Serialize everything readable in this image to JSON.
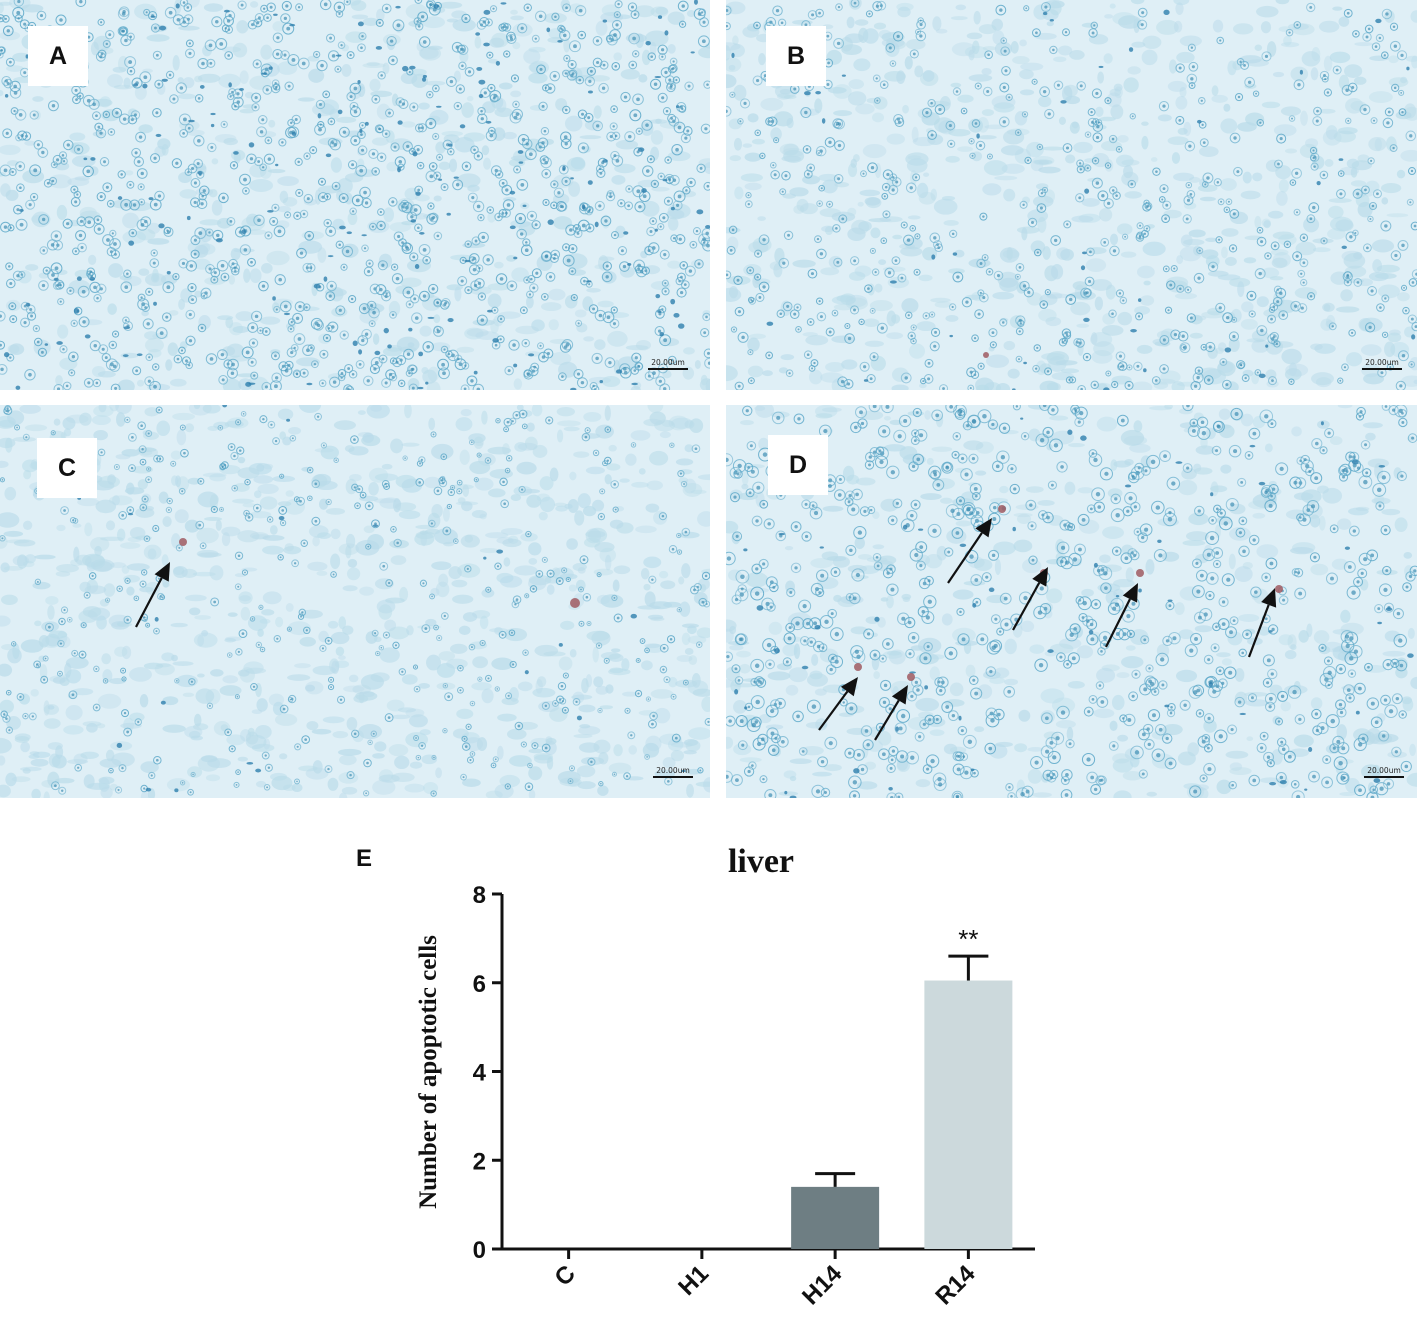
{
  "panels": [
    {
      "letter": "A",
      "scale": "20.00um"
    },
    {
      "letter": "B",
      "scale": "20.00um"
    },
    {
      "letter": "C",
      "scale": "20.00um"
    },
    {
      "letter": "D",
      "scale": "20.00um"
    }
  ],
  "panel_e_letter": "E",
  "colors": {
    "tissue_bg": "#dfeff6",
    "nucleus": "#5ea9c9",
    "apoptotic": "#a05a62",
    "bar_h14": "#6e7e83",
    "bar_r14": "#ccd9dc"
  },
  "chart_data": {
    "type": "bar",
    "title": "liver",
    "xlabel": "",
    "ylabel": "Number of apoptotic cells",
    "categories": [
      "C",
      "H1",
      "H14",
      "R14"
    ],
    "values": [
      0,
      0,
      1.4,
      6.05
    ],
    "errors": [
      0,
      0,
      0.3,
      0.55
    ],
    "significance": [
      "",
      "",
      "",
      "**"
    ],
    "ylim": [
      0,
      8
    ],
    "yticks": [
      0,
      2,
      4,
      6,
      8
    ],
    "grid": false
  }
}
